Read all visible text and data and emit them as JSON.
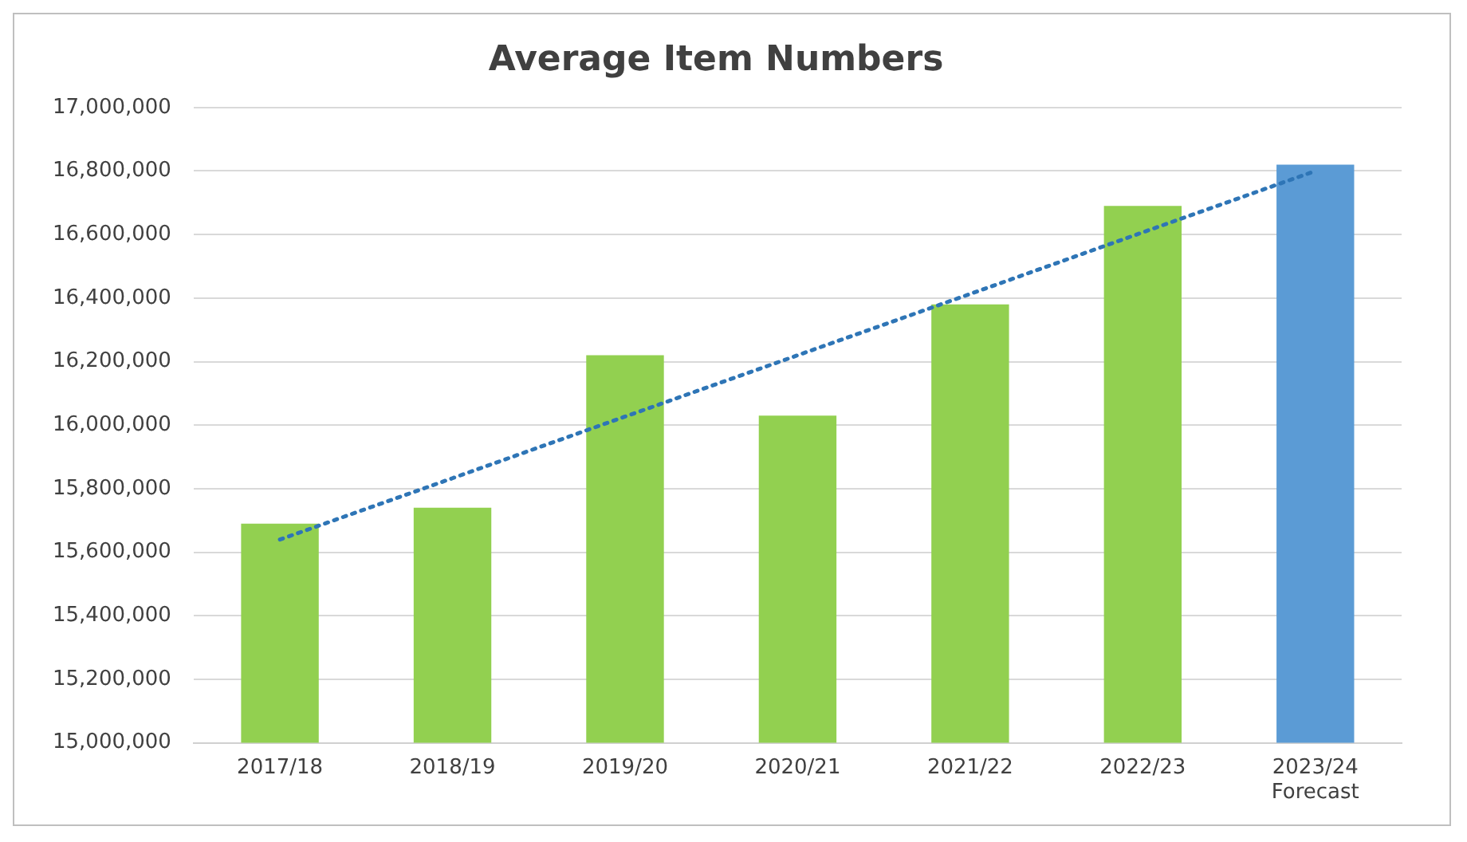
{
  "chart_data": {
    "type": "bar",
    "title": "Average Item Numbers",
    "categories": [
      "2017/18",
      "2018/19",
      "2019/20",
      "2020/21",
      "2021/22",
      "2022/23",
      "2023/24\nForecast"
    ],
    "series": [
      {
        "colors": [
          "#92d050",
          "#92d050",
          "#92d050",
          "#92d050",
          "#92d050",
          "#92d050",
          "#5b9bd5"
        ],
        "values": [
          15690000,
          15740000,
          16220000,
          16030000,
          16380000,
          16690000,
          16820000
        ]
      },
      {
        "type": "line",
        "color": "#2e75b6",
        "line_style": "dotted",
        "marker": "none",
        "values": [
          15640000,
          15833000,
          16027000,
          16220000,
          16413000,
          16607000,
          16800000
        ]
      }
    ],
    "ylim": [
      15000000,
      17000000
    ],
    "yticks": [
      {
        "value": 15000000,
        "label": "15,000,000"
      },
      {
        "value": 15200000,
        "label": "15,200,000"
      },
      {
        "value": 15400000,
        "label": "15,400,000"
      },
      {
        "value": 15600000,
        "label": "15,600,000"
      },
      {
        "value": 15800000,
        "label": "15,800,000"
      },
      {
        "value": 16000000,
        "label": "16,000,000"
      },
      {
        "value": 16200000,
        "label": "16,200,000"
      },
      {
        "value": 16400000,
        "label": "16,400,000"
      },
      {
        "value": 16600000,
        "label": "16,600,000"
      },
      {
        "value": 16800000,
        "label": "16,800,000"
      },
      {
        "value": 17000000,
        "label": "17,000,000"
      }
    ],
    "grid": "y"
  }
}
